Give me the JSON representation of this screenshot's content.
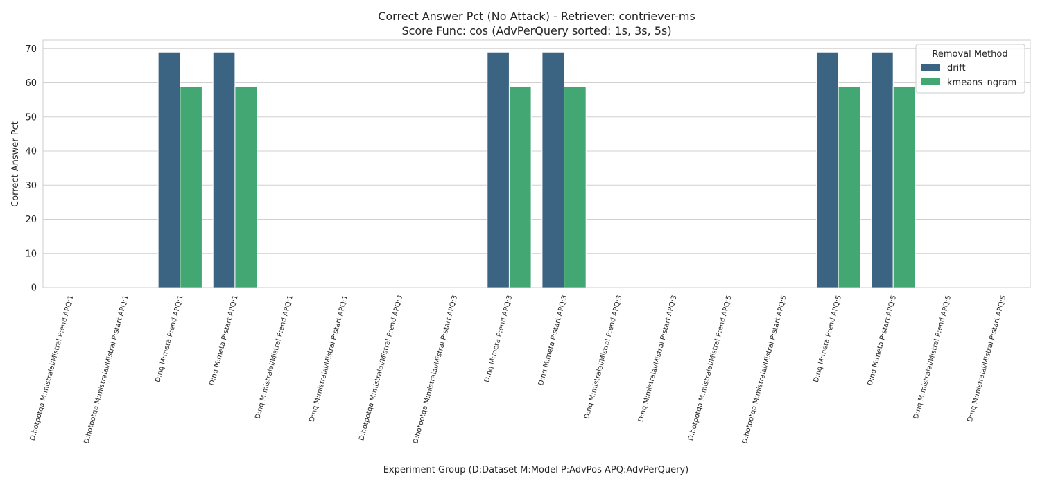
{
  "chart_data": {
    "type": "bar",
    "title": "Correct Answer Pct (No Attack) - Retriever: contriever-ms",
    "subtitle": "Score Func: cos (AdvPerQuery sorted: 1s, 3s, 5s)",
    "xlabel": "Experiment Group (D:Dataset M:Model P:AdvPos APQ:AdvPerQuery)",
    "ylabel": "Correct Answer Pct",
    "ylim": [
      0,
      72.5
    ],
    "yticks": [
      "0",
      "10",
      "20",
      "30",
      "40",
      "50",
      "60",
      "70"
    ],
    "grid": true,
    "legend_title": "Removal Method",
    "legend_position": "top-right",
    "categories": [
      "D:hotpotqa M:mistralai/Mistral P:end APQ:1",
      "D:hotpotqa M:mistralai/Mistral P:start APQ:1",
      "D:nq M:meta P:end APQ:1",
      "D:nq M:meta P:start APQ:1",
      "D:nq M:mistralai/Mistral P:end APQ:1",
      "D:nq M:mistralai/Mistral P:start APQ:1",
      "D:hotpotqa M:mistralai/Mistral P:end APQ:3",
      "D:hotpotqa M:mistralai/Mistral P:start APQ:3",
      "D:nq M:meta P:end APQ:3",
      "D:nq M:meta P:start APQ:3",
      "D:nq M:mistralai/Mistral P:end APQ:3",
      "D:nq M:mistralai/Mistral P:start APQ:3",
      "D:hotpotqa M:mistralai/Mistral P:end APQ:5",
      "D:hotpotqa M:mistralai/Mistral P:start APQ:5",
      "D:nq M:meta P:end APQ:5",
      "D:nq M:meta P:start APQ:5",
      "D:nq M:mistralai/Mistral P:end APQ:5",
      "D:nq M:mistralai/Mistral P:start APQ:5"
    ],
    "series": [
      {
        "name": "drift",
        "color": "#3b6482",
        "values": [
          0,
          0,
          69,
          69,
          0,
          0,
          0,
          0,
          69,
          69,
          0,
          0,
          0,
          0,
          69,
          69,
          0,
          0
        ]
      },
      {
        "name": "kmeans_ngram",
        "color": "#43a774",
        "values": [
          0,
          0,
          59,
          59,
          0,
          0,
          0,
          0,
          59,
          59,
          0,
          0,
          0,
          0,
          59,
          59,
          0,
          0
        ]
      }
    ]
  }
}
